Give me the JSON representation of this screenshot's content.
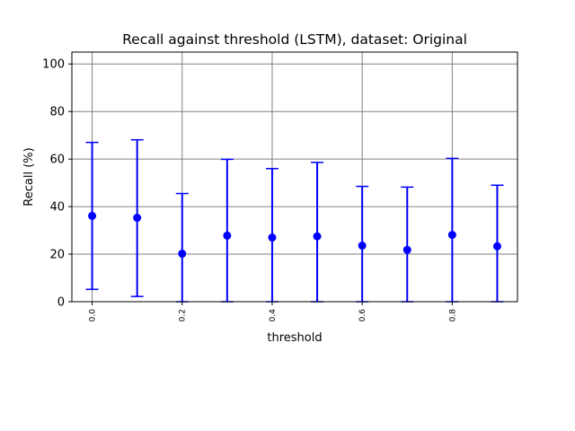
{
  "chart_data": {
    "type": "scatter",
    "title": "Recall against threshold (LSTM), dataset: Original",
    "xlabel": "threshold",
    "ylabel": "Recall (%)",
    "xlim": [
      -0.045,
      0.945
    ],
    "ylim": [
      0,
      105
    ],
    "grid": true,
    "xticks": [
      "0.0",
      "0.2",
      "0.4",
      "0.6",
      "0.8"
    ],
    "xtick_values": [
      0.0,
      0.2,
      0.4,
      0.6,
      0.8
    ],
    "yticks": [
      "0",
      "20",
      "40",
      "60",
      "80",
      "100"
    ],
    "ytick_values": [
      0,
      20,
      40,
      60,
      80,
      100
    ],
    "color": "#0000ff",
    "series": [
      {
        "x": [
          0.0,
          0.1,
          0.2,
          0.3,
          0.4,
          0.5,
          0.6,
          0.7,
          0.8,
          0.9
        ],
        "y": [
          36.1,
          35.3,
          20.2,
          27.8,
          27.0,
          27.5,
          23.6,
          21.8,
          28.1,
          23.3
        ],
        "err_low": [
          5.2,
          2.2,
          0,
          0,
          0,
          0,
          0,
          0,
          0,
          0
        ],
        "err_high": [
          67.0,
          68.1,
          45.5,
          59.9,
          56.0,
          58.6,
          48.5,
          48.2,
          60.3,
          49.0
        ]
      }
    ]
  }
}
